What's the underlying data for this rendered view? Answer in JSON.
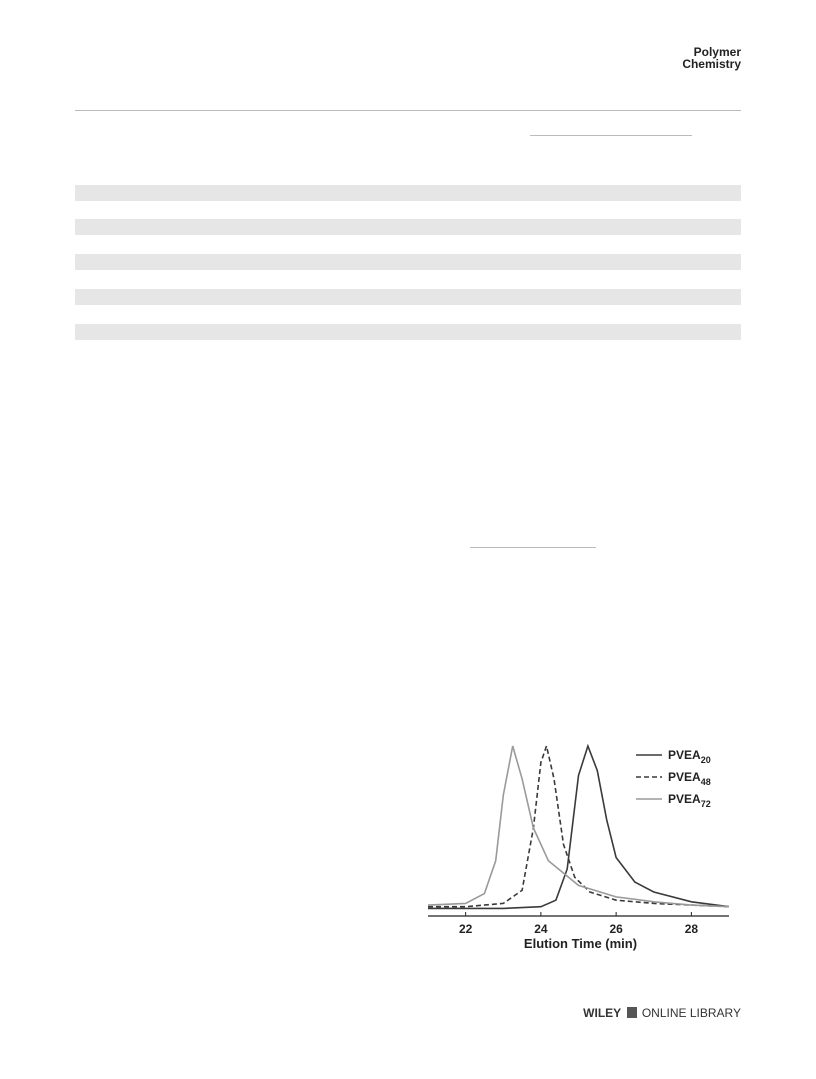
{
  "header": {
    "journal": [
      "Polymer",
      "Chemistry"
    ]
  },
  "footer": {
    "logo": [
      "WILEY",
      "ONLINE LIBRARY"
    ]
  },
  "chart_data": {
    "type": "line",
    "xlabel": "Elution Time (min)",
    "xlim": [
      21,
      29
    ],
    "xticks": [
      22,
      24,
      26,
      28
    ],
    "ylim": [
      0,
      1
    ],
    "series": [
      {
        "name": "PVEA",
        "subscript": "20",
        "color": "#3a3a3a",
        "dash": false,
        "x": [
          21,
          23,
          24,
          24.4,
          24.7,
          25.0,
          25.25,
          25.5,
          25.75,
          26,
          26.5,
          27,
          28,
          29
        ],
        "values": [
          0.01,
          0.01,
          0.02,
          0.06,
          0.25,
          0.82,
          1.0,
          0.85,
          0.55,
          0.32,
          0.17,
          0.11,
          0.05,
          0.02
        ]
      },
      {
        "name": "PVEA",
        "subscript": "48",
        "color": "#3a3a3a",
        "dash": true,
        "x": [
          21,
          22,
          23,
          23.5,
          23.8,
          24.0,
          24.15,
          24.35,
          24.6,
          24.9,
          25.3,
          26,
          27,
          28,
          29
        ],
        "values": [
          0.02,
          0.02,
          0.04,
          0.12,
          0.5,
          0.9,
          1.0,
          0.8,
          0.4,
          0.2,
          0.11,
          0.06,
          0.04,
          0.03,
          0.02
        ]
      },
      {
        "name": "PVEA",
        "subscript": "72",
        "color": "#9a9a9a",
        "dash": false,
        "x": [
          21,
          22,
          22.5,
          22.8,
          23.0,
          23.25,
          23.5,
          23.8,
          24.2,
          25,
          26,
          27,
          28,
          29
        ],
        "values": [
          0.03,
          0.04,
          0.1,
          0.3,
          0.7,
          1.0,
          0.8,
          0.5,
          0.3,
          0.15,
          0.08,
          0.05,
          0.03,
          0.02
        ]
      }
    ]
  }
}
